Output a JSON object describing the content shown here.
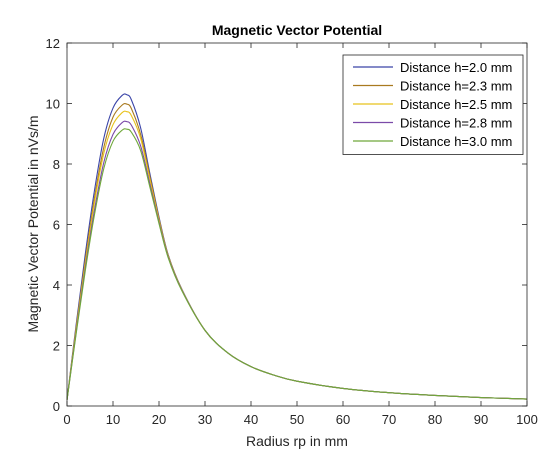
{
  "chart_data": {
    "type": "line",
    "title": "Magnetic Vector Potential",
    "xlabel": "Radius rp in mm",
    "ylabel": "Magnetic Vector Potential in nVs/m",
    "xlim": [
      0,
      100
    ],
    "ylim": [
      0,
      12
    ],
    "xticks": [
      0,
      10,
      20,
      30,
      40,
      50,
      60,
      70,
      80,
      90,
      100
    ],
    "yticks": [
      0,
      2,
      4,
      6,
      8,
      10,
      12
    ],
    "grid": false,
    "legend_position": "top-right",
    "x": [
      0,
      2,
      4,
      6,
      8,
      10,
      12,
      13,
      14,
      16,
      18,
      20,
      22,
      25,
      30,
      35,
      40,
      45,
      50,
      60,
      70,
      80,
      90,
      100
    ],
    "series": [
      {
        "name": "Distance h=2.0 mm",
        "color": "#3b45a8",
        "values": [
          0.2,
          2.7,
          5.05,
          7.15,
          8.85,
          9.85,
          10.27,
          10.29,
          10.12,
          9.2,
          7.7,
          6.25,
          5.0,
          3.85,
          2.5,
          1.75,
          1.3,
          1.02,
          0.82,
          0.58,
          0.44,
          0.35,
          0.28,
          0.23
        ]
      },
      {
        "name": "Distance h=2.3 mm",
        "color": "#a97a20",
        "values": [
          0.2,
          2.6,
          4.85,
          6.9,
          8.55,
          9.55,
          9.95,
          9.98,
          9.83,
          8.98,
          7.6,
          6.2,
          4.98,
          3.84,
          2.5,
          1.75,
          1.3,
          1.02,
          0.82,
          0.58,
          0.44,
          0.35,
          0.28,
          0.23
        ]
      },
      {
        "name": "Distance h=2.5 mm",
        "color": "#e8c21c",
        "values": [
          0.2,
          2.55,
          4.75,
          6.75,
          8.35,
          9.3,
          9.7,
          9.73,
          9.6,
          8.85,
          7.5,
          6.15,
          4.96,
          3.83,
          2.5,
          1.75,
          1.3,
          1.02,
          0.82,
          0.58,
          0.44,
          0.35,
          0.28,
          0.23
        ]
      },
      {
        "name": "Distance h=2.8 mm",
        "color": "#7b4aa8",
        "values": [
          0.2,
          2.45,
          4.6,
          6.5,
          8.05,
          8.98,
          9.37,
          9.4,
          9.28,
          8.6,
          7.35,
          6.08,
          4.93,
          3.82,
          2.5,
          1.75,
          1.3,
          1.02,
          0.82,
          0.58,
          0.44,
          0.35,
          0.28,
          0.23
        ]
      },
      {
        "name": "Distance h=3.0 mm",
        "color": "#6fa83a",
        "values": [
          0.2,
          2.4,
          4.5,
          6.35,
          7.85,
          8.75,
          9.12,
          9.15,
          9.05,
          8.45,
          7.25,
          6.03,
          4.9,
          3.8,
          2.5,
          1.75,
          1.3,
          1.02,
          0.82,
          0.58,
          0.44,
          0.35,
          0.28,
          0.23
        ]
      }
    ]
  }
}
